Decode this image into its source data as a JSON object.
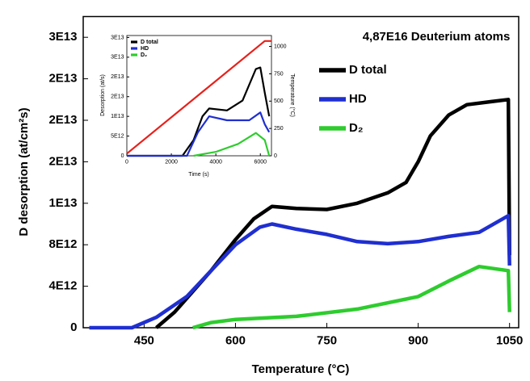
{
  "chart_data": [
    {
      "type": "line",
      "x_label": "Temperature (°C)",
      "y_label": "D desorption (at/cm²s)",
      "annotation": "4,87E16 Deuterium atoms",
      "xlim": [
        350,
        1065
      ],
      "xticks": [
        450,
        600,
        750,
        900,
        1050
      ],
      "ylim": [
        0,
        30000000000000.0
      ],
      "yticks": [
        0,
        {
          "value": 4000000000000.0,
          "label": "4E12"
        },
        {
          "value": 8000000000000.0,
          "label": "8E12"
        },
        {
          "value": 12000000000000.0,
          "label": "1E13"
        },
        {
          "value": 16000000000000.0,
          "label": "2E13"
        },
        {
          "value": 20000000000000.0,
          "label": "2E13"
        },
        {
          "value": 24000000000000.0,
          "label": "2E13"
        },
        {
          "value": 28000000000000.0,
          "label": "3E13"
        }
      ],
      "series": [
        {
          "name": "D total",
          "color": "#000000",
          "x": [
            470,
            500,
            530,
            560,
            600,
            630,
            660,
            700,
            750,
            800,
            850,
            880,
            900,
            920,
            950,
            980,
            1020,
            1048,
            1050
          ],
          "values": [
            0,
            1500000000000.0,
            3500000000000.0,
            5500000000000.0,
            8500000000000.0,
            10500000000000.0,
            11700000000000.0,
            11500000000000.0,
            11400000000000.0,
            12000000000000.0,
            13000000000000.0,
            14000000000000.0,
            16000000000000.0,
            18500000000000.0,
            20500000000000.0,
            21500000000000.0,
            21800000000000.0,
            22000000000000.0,
            7000000000000.0
          ]
        },
        {
          "name": "HD",
          "color": "#1f2fd0",
          "x": [
            360,
            430,
            470,
            520,
            560,
            600,
            640,
            660,
            700,
            750,
            800,
            850,
            900,
            950,
            1000,
            1048,
            1050
          ],
          "values": [
            0,
            0,
            1000000000000.0,
            3000000000000.0,
            5500000000000.0,
            8000000000000.0,
            9700000000000.0,
            10000000000000.0,
            9500000000000.0,
            9000000000000.0,
            8300000000000.0,
            8100000000000.0,
            8300000000000.0,
            8800000000000.0,
            9200000000000.0,
            10800000000000.0,
            6000000000000.0
          ]
        },
        {
          "name": "D₂",
          "color": "#2ecc2e",
          "x": [
            530,
            560,
            600,
            700,
            800,
            900,
            950,
            1000,
            1048,
            1050
          ],
          "values": [
            0,
            500000000000.0,
            800000000000.0,
            1100000000000.0,
            1800000000000.0,
            3000000000000.0,
            4500000000000.0,
            5900000000000.0,
            5500000000000.0,
            1500000000000.0
          ]
        }
      ]
    },
    {
      "type": "line",
      "x_label": "Time (s)",
      "y_label": "Desorption (at/s)",
      "y2_label": "Temperature (°C)",
      "xlim": [
        0,
        6500
      ],
      "xticks": [
        0,
        2000,
        4000,
        6000
      ],
      "ylim": [
        0,
        30500000000000.0
      ],
      "yticks": [
        0,
        {
          "value": 5000000000000.0,
          "label": "5E12"
        },
        {
          "value": 10000000000000.0,
          "label": "1E13"
        },
        {
          "value": 15000000000000.0,
          "label": "2E13"
        },
        {
          "value": 20000000000000.0,
          "label": "2E13"
        },
        {
          "value": 25000000000000.0,
          "label": "3E13"
        },
        {
          "value": 30000000000000.0,
          "label": "3E13"
        }
      ],
      "y2lim": [
        0,
        1100
      ],
      "y2ticks": [
        0,
        250,
        500,
        750,
        1000
      ],
      "series": [
        {
          "name": "D total",
          "color": "#000000",
          "x": [
            0,
            2500,
            3000,
            3400,
            3700,
            4500,
            5200,
            5800,
            6000,
            6200,
            6400
          ],
          "values": [
            0,
            0,
            4000000000000.0,
            10000000000000.0,
            12000000000000.0,
            11500000000000.0,
            14000000000000.0,
            22000000000000.0,
            22400000000000.0,
            16000000000000.0,
            10000000000000.0
          ]
        },
        {
          "name": "HD",
          "color": "#1f2fd0",
          "x": [
            0,
            2700,
            3200,
            3700,
            4500,
            5500,
            6000,
            6200,
            6400
          ],
          "values": [
            0,
            0,
            6000000000000.0,
            10000000000000.0,
            9000000000000.0,
            9000000000000.0,
            11000000000000.0,
            8000000000000.0,
            6000000000000.0
          ]
        },
        {
          "name": "D₂",
          "color": "#2ecc2e",
          "x": [
            3000,
            4000,
            5000,
            5800,
            6200,
            6400
          ],
          "values": [
            0,
            1000000000000.0,
            3000000000000.0,
            5800000000000.0,
            4000000000000.0,
            0
          ]
        },
        {
          "color": "#e8201a",
          "axis": "y2",
          "x": [
            0,
            6200,
            6500
          ],
          "values": [
            20,
            1050,
            1050
          ]
        }
      ]
    }
  ]
}
